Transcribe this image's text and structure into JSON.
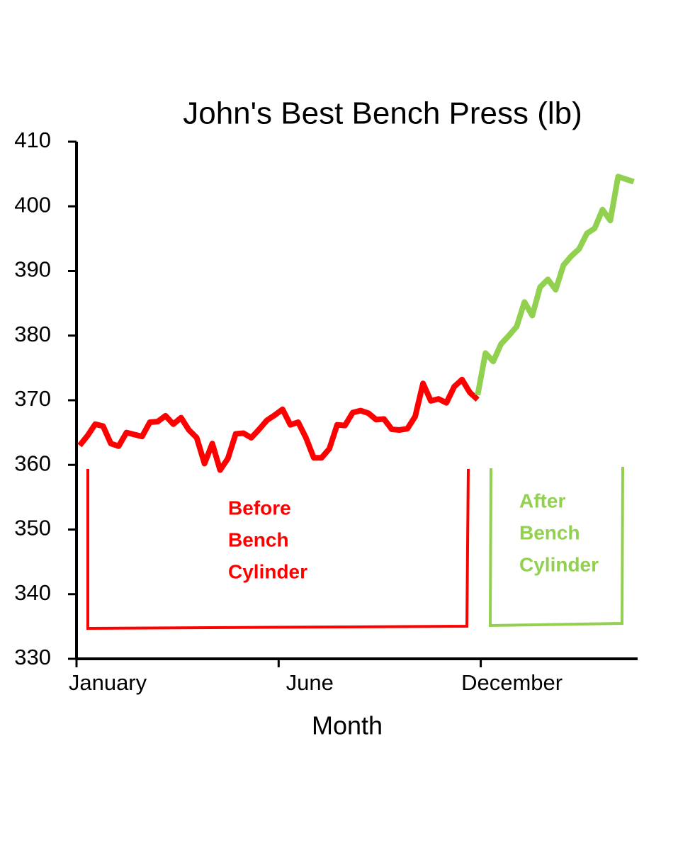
{
  "chart_data": {
    "type": "line",
    "title": "John's Best Bench Press (lb)",
    "x_label": "Month",
    "xlim": [
      -0.4,
      71.5
    ],
    "xticks": [
      {
        "value": -0.4,
        "label": "January"
      },
      {
        "value": 25.5,
        "label": "June"
      },
      {
        "value": 51.4,
        "label": "December"
      }
    ],
    "ylim": [
      330,
      410
    ],
    "yticks": [
      330,
      340,
      350,
      360,
      370,
      380,
      390,
      400,
      410
    ],
    "series": [
      {
        "name": "Before Bench Cylinder",
        "color": "#ff0000",
        "x": [
          0,
          1,
          2,
          3,
          4,
          5,
          6,
          7,
          8,
          9,
          10,
          11,
          12,
          13,
          14,
          15,
          16,
          17,
          18,
          19,
          20,
          21,
          22,
          23,
          24,
          25,
          26,
          27,
          28,
          29,
          30,
          31,
          32,
          33,
          34,
          35,
          36,
          37,
          38,
          39,
          40,
          41,
          42,
          43,
          44,
          45,
          46,
          47,
          48,
          49,
          50,
          51
        ],
        "values": [
          363,
          364.5,
          366.3,
          366,
          363.3,
          362.9,
          365,
          364.7,
          364.4,
          366.6,
          366.7,
          367.6,
          366.3,
          367.3,
          365.4,
          364.2,
          360.2,
          363.3,
          359.2,
          361,
          364.8,
          364.9,
          364.2,
          365.5,
          366.9,
          367.7,
          368.6,
          366.2,
          366.6,
          364.2,
          361.1,
          361.1,
          362.5,
          366.2,
          366.1,
          368.1,
          368.4,
          368,
          367,
          367.1,
          365.5,
          365.4,
          365.6,
          367.5,
          372.6,
          369.9,
          370.2,
          369.6,
          372.1,
          373.2,
          371.2,
          370.1
        ]
      },
      {
        "name": "After Bench Cylinder",
        "color": "#92d050",
        "x": [
          51,
          52,
          53,
          54,
          55,
          56,
          57,
          58,
          59,
          60,
          61,
          62,
          63,
          64,
          65,
          66,
          67,
          68,
          69,
          70,
          71
        ],
        "values": [
          370.8,
          377.3,
          376,
          378.7,
          380,
          381.4,
          385.2,
          383.1,
          387.5,
          388.7,
          387.1,
          390.9,
          392.3,
          393.4,
          395.8,
          396.6,
          399.5,
          397.8,
          404.6,
          404.2,
          403.8
        ]
      }
    ],
    "annotations": [
      {
        "lines": [
          "Before",
          "Bench",
          "Cylinder"
        ],
        "color": "#ff0000"
      },
      {
        "lines": [
          "After",
          "Bench",
          "Cylinder"
        ],
        "color": "#92d050"
      }
    ]
  }
}
